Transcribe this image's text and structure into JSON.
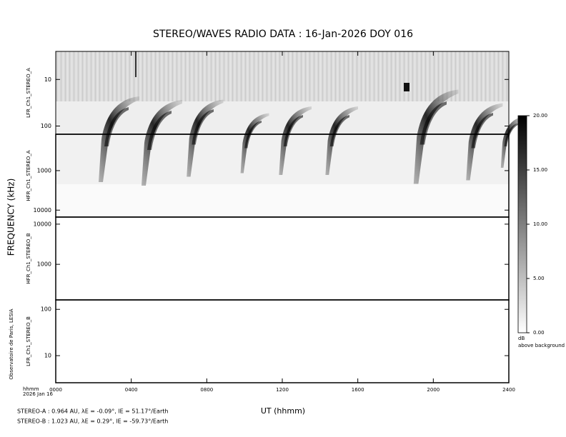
{
  "chart_data": {
    "type": "spectrogram",
    "title": "STEREO/WAVES  RADIO  DATA : 16-Jan-2026  DOY 016",
    "ylabel": "FREQUENCY (kHz)",
    "xlabel": "UT (hhmm)",
    "corner_label": [
      "hhmm",
      "2026 Jan 16"
    ],
    "credit": "Observatoire de Paris, LESIA",
    "xlim": [
      0,
      24
    ],
    "xticks": [
      {
        "value": 0,
        "label": "0000"
      },
      {
        "value": 4,
        "label": "0400"
      },
      {
        "value": 8,
        "label": "0800"
      },
      {
        "value": 12,
        "label": "1200"
      },
      {
        "value": 16,
        "label": "1600"
      },
      {
        "value": 20,
        "label": "2000"
      },
      {
        "value": 24,
        "label": "2400"
      }
    ],
    "log_y": true,
    "panels": [
      {
        "name": "LFR_Ch1_STEREO_A",
        "ylim": [
          150,
          2.5
        ],
        "yticks": [
          10,
          100
        ]
      },
      {
        "name": "HFR_Ch1_STEREO_A",
        "ylim": [
          15000,
          120
        ],
        "yticks": [
          1000,
          10000
        ]
      },
      {
        "name": "HFR_Ch1_STEREO_B",
        "ylim": [
          130,
          15000
        ],
        "yticks": [
          1000,
          10000
        ]
      },
      {
        "name": "LFR_Ch1_STEREO_B",
        "ylim": [
          2.6,
          160
        ],
        "yticks": [
          10,
          100
        ]
      }
    ],
    "colorbar": {
      "lim": [
        0,
        20
      ],
      "ticks": [
        {
          "value": 0,
          "label": "0.00"
        },
        {
          "value": 5,
          "label": "5.00"
        },
        {
          "value": 10,
          "label": "10.00"
        },
        {
          "value": 15,
          "label": "15.00"
        },
        {
          "value": 20,
          "label": "20.00"
        }
      ],
      "unit": "dB",
      "caption": "above background"
    },
    "footer": [
      "STEREO-A : 0.964 AU, λE = -0.09°, lE = 51.17°/Earth",
      "STEREO-B : 1.023 AU, λE = 0.29°, lE = -59.73°/Earth"
    ]
  }
}
